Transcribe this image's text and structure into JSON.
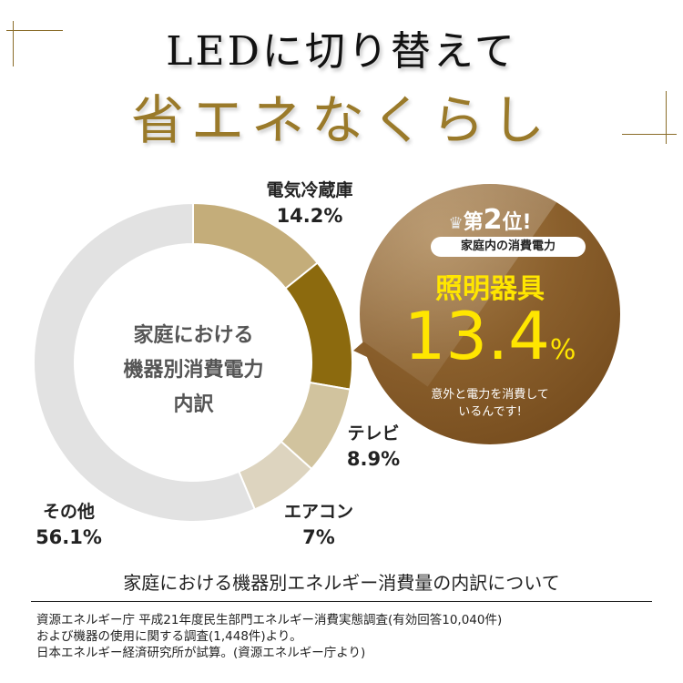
{
  "header": {
    "line1": "LEDに切り替えて",
    "line2": "省エネなくらし"
  },
  "chart_data": {
    "type": "pie",
    "donut": true,
    "center_label": [
      "家庭における",
      "機器別消費電力",
      "内訳"
    ],
    "unit": "%",
    "slices": [
      {
        "label": "電気冷蔵庫",
        "value": 14.2,
        "display": "14.2%",
        "color": "#c4ad7a"
      },
      {
        "label": "照明器具",
        "value": 13.4,
        "display": "13.4%",
        "color": "#8c6a0e"
      },
      {
        "label": "テレビ",
        "value": 8.9,
        "display": "8.9%",
        "color": "#d1c39e"
      },
      {
        "label": "エアコン",
        "value": 7,
        "display": "7%",
        "color": "#ddd4bf"
      },
      {
        "label": "その他",
        "value": 56.1,
        "display": "56.1%",
        "color": "#e2e2e2"
      }
    ]
  },
  "callout": {
    "rank_prefix": "第",
    "rank_num": "2",
    "rank_suffix": "位!",
    "pill": "家庭内の消費電力",
    "item": "照明器具",
    "value": "13.4",
    "unit": "%",
    "note1": "意外と電力を消費して",
    "note2": "いるんです!",
    "crown_icon": "crown-icon"
  },
  "footer": {
    "caption": "家庭における機器別エネルギー消費量の内訳について",
    "source": [
      "資源エネルギー庁 平成21年度民生部門エネルギー消費実態調査(有効回答10,040件)",
      "および機器の使用に関する調査(1,448件)より。",
      "日本エネルギー経済研究所が試算。(資源エネルギー庁より)"
    ]
  }
}
